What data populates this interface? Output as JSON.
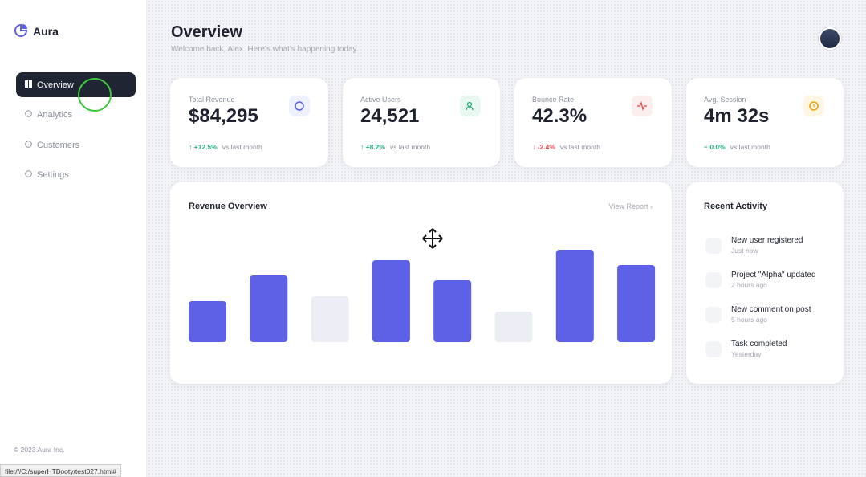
{
  "brand": "Aura",
  "nav": [
    "Overview",
    "Analytics",
    "Customers",
    "Settings"
  ],
  "footer": "© 2023 Aura Inc.",
  "status_bar": "file:///C:/superHTBooty/test027.html#",
  "header": {
    "title": "Overview",
    "subtitle": "Welcome back, Alex. Here's what's happening today."
  },
  "stats": [
    {
      "label": "Total Revenue",
      "value": "$84,295",
      "arrow": "↑",
      "change": "+12.5%",
      "note": "vs last month"
    },
    {
      "label": "Active Users",
      "value": "24,521",
      "arrow": "↑",
      "change": "+8.2%",
      "note": "vs last month"
    },
    {
      "label": "Bounce Rate",
      "value": "42.3%",
      "arrow": "↓",
      "change": "-2.4%",
      "note": "vs last month"
    },
    {
      "label": "Avg. Session",
      "value": "4m 32s",
      "arrow": "−",
      "change": "0.0%",
      "note": "vs last month"
    }
  ],
  "revenue_chart": {
    "title": "Revenue Overview",
    "link": "View Report ›",
    "values": [
      51,
      83,
      57,
      102,
      77,
      38,
      115,
      96
    ],
    "colors": [
      "#5c61e8",
      "#5c61e8",
      "#eceef5",
      "#5c61e8",
      "#5c61e8",
      "#eceef5",
      "#5c61e8",
      "#5c61e8"
    ],
    "ylim": [
      0,
      120
    ]
  },
  "activity": {
    "title": "Recent Activity",
    "items": [
      {
        "title": "New user registered",
        "time": "Just now"
      },
      {
        "title": "Project \"Alpha\" updated",
        "time": "2 hours ago"
      },
      {
        "title": "New comment on post",
        "time": "5 hours ago"
      },
      {
        "title": "Task completed",
        "time": "Yesterday"
      }
    ]
  }
}
